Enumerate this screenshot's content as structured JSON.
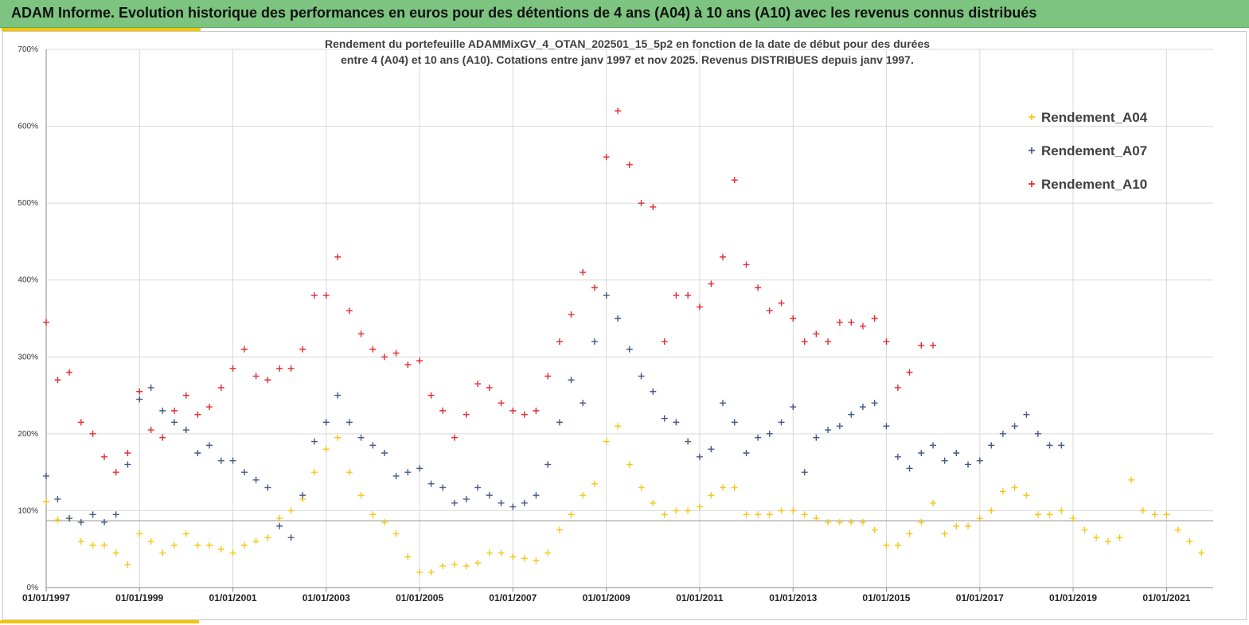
{
  "header": {
    "title": "ADAM Informe. Evolution historique des performances en euros pour des détentions de 4 ans (A04) à 10 ans (A10) avec les revenus connus distribués"
  },
  "colors": {
    "header_bg": "#7cc47f",
    "accent": "#f5c400",
    "A04": "#f5c000",
    "A07": "#2f4a7a",
    "A10": "#e0181c"
  },
  "chart_data": {
    "type": "scatter",
    "marker": "+",
    "title_lines": [
      "Rendement du portefeuille ADAMMixGV_4_OTAN_202501_15_5p2  en fonction de la date de début pour des durées",
      "entre 4 (A04) et 10 ans (A10). Cotations entre janv 1997 et nov 2025. Revenus DISTRIBUES depuis janv 1997."
    ],
    "xlabel": "",
    "ylabel": "",
    "x_range": [
      "1997-01-01",
      "2022-01-01"
    ],
    "x_ticks": [
      "01/01/1997",
      "01/01/1999",
      "01/01/2001",
      "01/01/2003",
      "01/01/2005",
      "01/01/2007",
      "01/01/2009",
      "01/01/2011",
      "01/01/2013",
      "01/01/2015",
      "01/01/2017",
      "01/01/2019",
      "01/01/2021"
    ],
    "ylim": [
      0,
      700
    ],
    "y_ticks": [
      "0%",
      "100%",
      "200%",
      "300%",
      "400%",
      "500%",
      "600%",
      "700%"
    ],
    "reference_line": 87,
    "grid": true,
    "legend_position": "top-right",
    "series": [
      {
        "name": "Rendement_A04",
        "color": "#f5c000",
        "points": [
          [
            "1997-01-01",
            112
          ],
          [
            "1997-04-01",
            88
          ],
          [
            "1997-07-01",
            90
          ],
          [
            "1997-10-01",
            60
          ],
          [
            "1998-01-01",
            55
          ],
          [
            "1998-04-01",
            55
          ],
          [
            "1998-07-01",
            45
          ],
          [
            "1998-10-01",
            30
          ],
          [
            "1999-01-01",
            70
          ],
          [
            "1999-04-01",
            60
          ],
          [
            "1999-07-01",
            45
          ],
          [
            "1999-10-01",
            55
          ],
          [
            "2000-01-01",
            70
          ],
          [
            "2000-04-01",
            55
          ],
          [
            "2000-07-01",
            55
          ],
          [
            "2000-10-01",
            50
          ],
          [
            "2001-01-01",
            45
          ],
          [
            "2001-04-01",
            55
          ],
          [
            "2001-07-01",
            60
          ],
          [
            "2001-10-01",
            65
          ],
          [
            "2002-01-01",
            90
          ],
          [
            "2002-04-01",
            100
          ],
          [
            "2002-07-01",
            115
          ],
          [
            "2002-10-01",
            150
          ],
          [
            "2003-01-01",
            180
          ],
          [
            "2003-04-01",
            195
          ],
          [
            "2003-07-01",
            150
          ],
          [
            "2003-10-01",
            120
          ],
          [
            "2004-01-01",
            95
          ],
          [
            "2004-04-01",
            85
          ],
          [
            "2004-07-01",
            70
          ],
          [
            "2004-10-01",
            40
          ],
          [
            "2005-01-01",
            20
          ],
          [
            "2005-04-01",
            20
          ],
          [
            "2005-07-01",
            28
          ],
          [
            "2005-10-01",
            30
          ],
          [
            "2006-01-01",
            28
          ],
          [
            "2006-04-01",
            32
          ],
          [
            "2006-07-01",
            45
          ],
          [
            "2006-10-01",
            45
          ],
          [
            "2007-01-01",
            40
          ],
          [
            "2007-04-01",
            38
          ],
          [
            "2007-07-01",
            35
          ],
          [
            "2007-10-01",
            45
          ],
          [
            "2008-01-01",
            75
          ],
          [
            "2008-04-01",
            95
          ],
          [
            "2008-07-01",
            120
          ],
          [
            "2008-10-01",
            135
          ],
          [
            "2009-01-01",
            190
          ],
          [
            "2009-04-01",
            210
          ],
          [
            "2009-07-01",
            160
          ],
          [
            "2009-10-01",
            130
          ],
          [
            "2010-01-01",
            110
          ],
          [
            "2010-04-01",
            95
          ],
          [
            "2010-07-01",
            100
          ],
          [
            "2010-10-01",
            100
          ],
          [
            "2011-01-01",
            105
          ],
          [
            "2011-04-01",
            120
          ],
          [
            "2011-07-01",
            130
          ],
          [
            "2011-10-01",
            130
          ],
          [
            "2012-01-01",
            95
          ],
          [
            "2012-04-01",
            95
          ],
          [
            "2012-07-01",
            95
          ],
          [
            "2012-10-01",
            100
          ],
          [
            "2013-01-01",
            100
          ],
          [
            "2013-04-01",
            95
          ],
          [
            "2013-07-01",
            90
          ],
          [
            "2013-10-01",
            85
          ],
          [
            "2014-01-01",
            85
          ],
          [
            "2014-04-01",
            85
          ],
          [
            "2014-07-01",
            85
          ],
          [
            "2014-10-01",
            75
          ],
          [
            "2015-01-01",
            55
          ],
          [
            "2015-04-01",
            55
          ],
          [
            "2015-07-01",
            70
          ],
          [
            "2015-10-01",
            85
          ],
          [
            "2016-01-01",
            110
          ],
          [
            "2016-04-01",
            70
          ],
          [
            "2016-07-01",
            80
          ],
          [
            "2016-10-01",
            80
          ],
          [
            "2017-01-01",
            90
          ],
          [
            "2017-04-01",
            100
          ],
          [
            "2017-07-01",
            125
          ],
          [
            "2017-10-01",
            130
          ],
          [
            "2018-01-01",
            120
          ],
          [
            "2018-04-01",
            95
          ],
          [
            "2018-07-01",
            95
          ],
          [
            "2018-10-01",
            100
          ],
          [
            "2019-01-01",
            90
          ],
          [
            "2019-04-01",
            75
          ],
          [
            "2019-07-01",
            65
          ],
          [
            "2019-10-01",
            60
          ],
          [
            "2020-01-01",
            65
          ],
          [
            "2020-04-01",
            140
          ],
          [
            "2020-07-01",
            100
          ],
          [
            "2020-10-01",
            95
          ],
          [
            "2021-01-01",
            95
          ],
          [
            "2021-04-01",
            75
          ],
          [
            "2021-07-01",
            60
          ],
          [
            "2021-10-01",
            45
          ]
        ]
      },
      {
        "name": "Rendement_A07",
        "color": "#2f4a7a",
        "points": [
          [
            "1997-01-01",
            145
          ],
          [
            "1997-04-01",
            115
          ],
          [
            "1997-07-01",
            90
          ],
          [
            "1997-10-01",
            85
          ],
          [
            "1998-01-01",
            95
          ],
          [
            "1998-04-01",
            85
          ],
          [
            "1998-07-01",
            95
          ],
          [
            "1998-10-01",
            160
          ],
          [
            "1999-01-01",
            245
          ],
          [
            "1999-04-01",
            260
          ],
          [
            "1999-07-01",
            230
          ],
          [
            "1999-10-01",
            215
          ],
          [
            "2000-01-01",
            205
          ],
          [
            "2000-04-01",
            175
          ],
          [
            "2000-07-01",
            185
          ],
          [
            "2000-10-01",
            165
          ],
          [
            "2001-01-01",
            165
          ],
          [
            "2001-04-01",
            150
          ],
          [
            "2001-07-01",
            140
          ],
          [
            "2001-10-01",
            130
          ],
          [
            "2002-01-01",
            80
          ],
          [
            "2002-04-01",
            65
          ],
          [
            "2002-07-01",
            120
          ],
          [
            "2002-10-01",
            190
          ],
          [
            "2003-01-01",
            215
          ],
          [
            "2003-04-01",
            250
          ],
          [
            "2003-07-01",
            215
          ],
          [
            "2003-10-01",
            195
          ],
          [
            "2004-01-01",
            185
          ],
          [
            "2004-04-01",
            175
          ],
          [
            "2004-07-01",
            145
          ],
          [
            "2004-10-01",
            150
          ],
          [
            "2005-01-01",
            155
          ],
          [
            "2005-04-01",
            135
          ],
          [
            "2005-07-01",
            130
          ],
          [
            "2005-10-01",
            110
          ],
          [
            "2006-01-01",
            115
          ],
          [
            "2006-04-01",
            130
          ],
          [
            "2006-07-01",
            120
          ],
          [
            "2006-10-01",
            110
          ],
          [
            "2007-01-01",
            105
          ],
          [
            "2007-04-01",
            110
          ],
          [
            "2007-07-01",
            120
          ],
          [
            "2007-10-01",
            160
          ],
          [
            "2008-01-01",
            215
          ],
          [
            "2008-04-01",
            270
          ],
          [
            "2008-07-01",
            240
          ],
          [
            "2008-10-01",
            320
          ],
          [
            "2009-01-01",
            380
          ],
          [
            "2009-04-01",
            350
          ],
          [
            "2009-07-01",
            310
          ],
          [
            "2009-10-01",
            275
          ],
          [
            "2010-01-01",
            255
          ],
          [
            "2010-04-01",
            220
          ],
          [
            "2010-07-01",
            215
          ],
          [
            "2010-10-01",
            190
          ],
          [
            "2011-01-01",
            170
          ],
          [
            "2011-04-01",
            180
          ],
          [
            "2011-07-01",
            240
          ],
          [
            "2011-10-01",
            215
          ],
          [
            "2012-01-01",
            175
          ],
          [
            "2012-04-01",
            195
          ],
          [
            "2012-07-01",
            200
          ],
          [
            "2012-10-01",
            215
          ],
          [
            "2013-01-01",
            235
          ],
          [
            "2013-04-01",
            150
          ],
          [
            "2013-07-01",
            195
          ],
          [
            "2013-10-01",
            205
          ],
          [
            "2014-01-01",
            210
          ],
          [
            "2014-04-01",
            225
          ],
          [
            "2014-07-01",
            235
          ],
          [
            "2014-10-01",
            240
          ],
          [
            "2015-01-01",
            210
          ],
          [
            "2015-04-01",
            170
          ],
          [
            "2015-07-01",
            155
          ],
          [
            "2015-10-01",
            175
          ],
          [
            "2016-01-01",
            185
          ],
          [
            "2016-04-01",
            165
          ],
          [
            "2016-07-01",
            175
          ],
          [
            "2016-10-01",
            160
          ],
          [
            "2017-01-01",
            165
          ],
          [
            "2017-04-01",
            185
          ],
          [
            "2017-07-01",
            200
          ],
          [
            "2017-10-01",
            210
          ],
          [
            "2018-01-01",
            225
          ],
          [
            "2018-04-01",
            200
          ],
          [
            "2018-07-01",
            185
          ],
          [
            "2018-10-01",
            185
          ]
        ]
      },
      {
        "name": "Rendement_A10",
        "color": "#e0181c",
        "points": [
          [
            "1997-01-01",
            345
          ],
          [
            "1997-04-01",
            270
          ],
          [
            "1997-07-01",
            280
          ],
          [
            "1997-10-01",
            215
          ],
          [
            "1998-01-01",
            200
          ],
          [
            "1998-04-01",
            170
          ],
          [
            "1998-07-01",
            150
          ],
          [
            "1998-10-01",
            175
          ],
          [
            "1999-01-01",
            255
          ],
          [
            "1999-04-01",
            205
          ],
          [
            "1999-07-01",
            195
          ],
          [
            "1999-10-01",
            230
          ],
          [
            "2000-01-01",
            250
          ],
          [
            "2000-04-01",
            225
          ],
          [
            "2000-07-01",
            235
          ],
          [
            "2000-10-01",
            260
          ],
          [
            "2001-01-01",
            285
          ],
          [
            "2001-04-01",
            310
          ],
          [
            "2001-07-01",
            275
          ],
          [
            "2001-10-01",
            270
          ],
          [
            "2002-01-01",
            285
          ],
          [
            "2002-04-01",
            285
          ],
          [
            "2002-07-01",
            310
          ],
          [
            "2002-10-01",
            380
          ],
          [
            "2003-01-01",
            380
          ],
          [
            "2003-04-01",
            430
          ],
          [
            "2003-07-01",
            360
          ],
          [
            "2003-10-01",
            330
          ],
          [
            "2004-01-01",
            310
          ],
          [
            "2004-04-01",
            300
          ],
          [
            "2004-07-01",
            305
          ],
          [
            "2004-10-01",
            290
          ],
          [
            "2005-01-01",
            295
          ],
          [
            "2005-04-01",
            250
          ],
          [
            "2005-07-01",
            230
          ],
          [
            "2005-10-01",
            195
          ],
          [
            "2006-01-01",
            225
          ],
          [
            "2006-04-01",
            265
          ],
          [
            "2006-07-01",
            260
          ],
          [
            "2006-10-01",
            240
          ],
          [
            "2007-01-01",
            230
          ],
          [
            "2007-04-01",
            225
          ],
          [
            "2007-07-01",
            230
          ],
          [
            "2007-10-01",
            275
          ],
          [
            "2008-01-01",
            320
          ],
          [
            "2008-04-01",
            355
          ],
          [
            "2008-07-01",
            410
          ],
          [
            "2008-10-01",
            390
          ],
          [
            "2009-01-01",
            560
          ],
          [
            "2009-04-01",
            620
          ],
          [
            "2009-07-01",
            550
          ],
          [
            "2009-10-01",
            500
          ],
          [
            "2010-01-01",
            495
          ],
          [
            "2010-04-01",
            320
          ],
          [
            "2010-07-01",
            380
          ],
          [
            "2010-10-01",
            380
          ],
          [
            "2011-01-01",
            365
          ],
          [
            "2011-04-01",
            395
          ],
          [
            "2011-07-01",
            430
          ],
          [
            "2011-10-01",
            530
          ],
          [
            "2012-01-01",
            420
          ],
          [
            "2012-04-01",
            390
          ],
          [
            "2012-07-01",
            360
          ],
          [
            "2012-10-01",
            370
          ],
          [
            "2013-01-01",
            350
          ],
          [
            "2013-04-01",
            320
          ],
          [
            "2013-07-01",
            330
          ],
          [
            "2013-10-01",
            320
          ],
          [
            "2014-01-01",
            345
          ],
          [
            "2014-04-01",
            345
          ],
          [
            "2014-07-01",
            340
          ],
          [
            "2014-10-01",
            350
          ],
          [
            "2015-01-01",
            320
          ],
          [
            "2015-04-01",
            260
          ],
          [
            "2015-07-01",
            280
          ],
          [
            "2015-10-01",
            315
          ],
          [
            "2016-01-01",
            315
          ]
        ]
      }
    ]
  }
}
